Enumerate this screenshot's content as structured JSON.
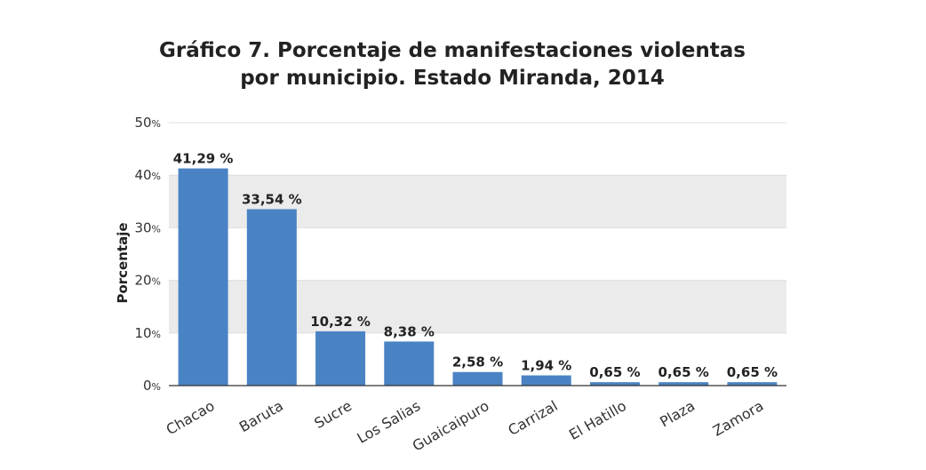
{
  "title_line1": "Gráfico 7. Porcentaje de manifestaciones violentas",
  "title_line2": "por municipio. Estado Miranda, 2014",
  "chart_data": {
    "type": "bar",
    "title": "Gráfico 7. Porcentaje de manifestaciones violentas por municipio. Estado Miranda, 2014",
    "xlabel": "",
    "ylabel": "Porcentaje",
    "categories": [
      "Chacao",
      "Baruta",
      "Sucre",
      "Los Salias",
      "Guaicaipuro",
      "Carrizal",
      "El Hatillo",
      "Plaza",
      "Zamora"
    ],
    "values": [
      41.29,
      33.54,
      10.32,
      8.38,
      2.58,
      1.94,
      0.65,
      0.65,
      0.65
    ],
    "value_labels": [
      "41,29 %",
      "33,54 %",
      "10,32 %",
      "8,38 %",
      "2,58 %",
      "1,94 %",
      "0,65 %",
      "0,65 %",
      "0,65 %"
    ],
    "ylim": [
      0,
      50
    ],
    "yticks": [
      0,
      10,
      20,
      30,
      40,
      50
    ],
    "ytick_suffix": "%",
    "bar_color": "#4a83c4",
    "band_color": "#ebebeb",
    "grid": true
  }
}
